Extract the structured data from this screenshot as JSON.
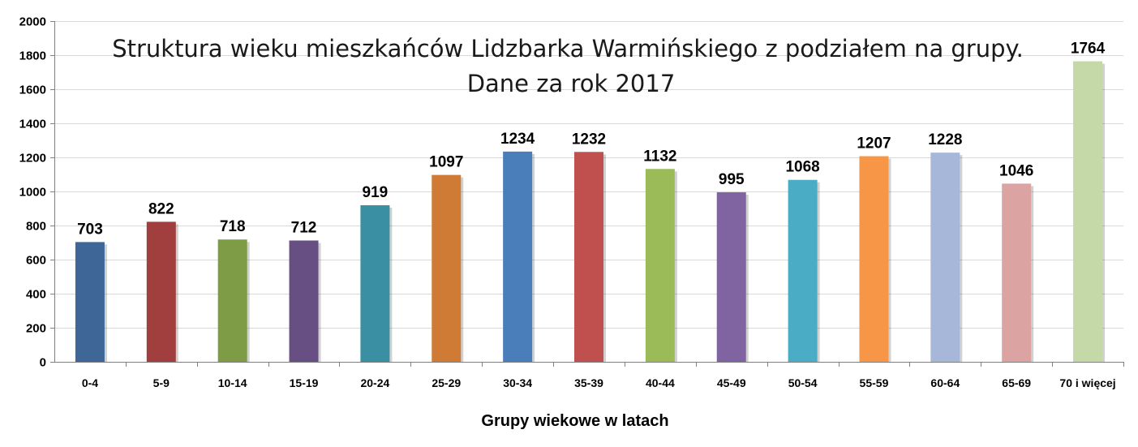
{
  "chart_data": {
    "type": "bar",
    "title": "Struktura  wieku mieszkańców Lidzbarka Warmińskiego z podziałem na grupy.",
    "subtitle": "Dane za rok 2017",
    "xlabel": "Grupy wiekowe  w latach",
    "ylabel": "",
    "ylim": [
      0,
      2000
    ],
    "yticks": [
      0,
      200,
      400,
      600,
      800,
      1000,
      1200,
      1400,
      1600,
      1800,
      2000
    ],
    "grid": true,
    "legend": "none",
    "categories": [
      "0-4",
      "5-9",
      "10-14",
      "15-19",
      "20-24",
      "25-29",
      "30-34",
      "35-39",
      "40-44",
      "45-49",
      "50-54",
      "55-59",
      "60-64",
      "65-69",
      "70 i więcej"
    ],
    "values": [
      703,
      822,
      718,
      712,
      919,
      1097,
      1234,
      1232,
      1132,
      995,
      1068,
      1207,
      1228,
      1046,
      1764
    ],
    "colors": [
      "#3e6797",
      "#a03f3d",
      "#7e9c45",
      "#674f84",
      "#3a8fa2",
      "#cf7a35",
      "#4a7ebb",
      "#c0504d",
      "#9bbb59",
      "#8064a2",
      "#4bacc6",
      "#f79646",
      "#a6b7d9",
      "#dba3a2",
      "#c5d8a7"
    ]
  }
}
